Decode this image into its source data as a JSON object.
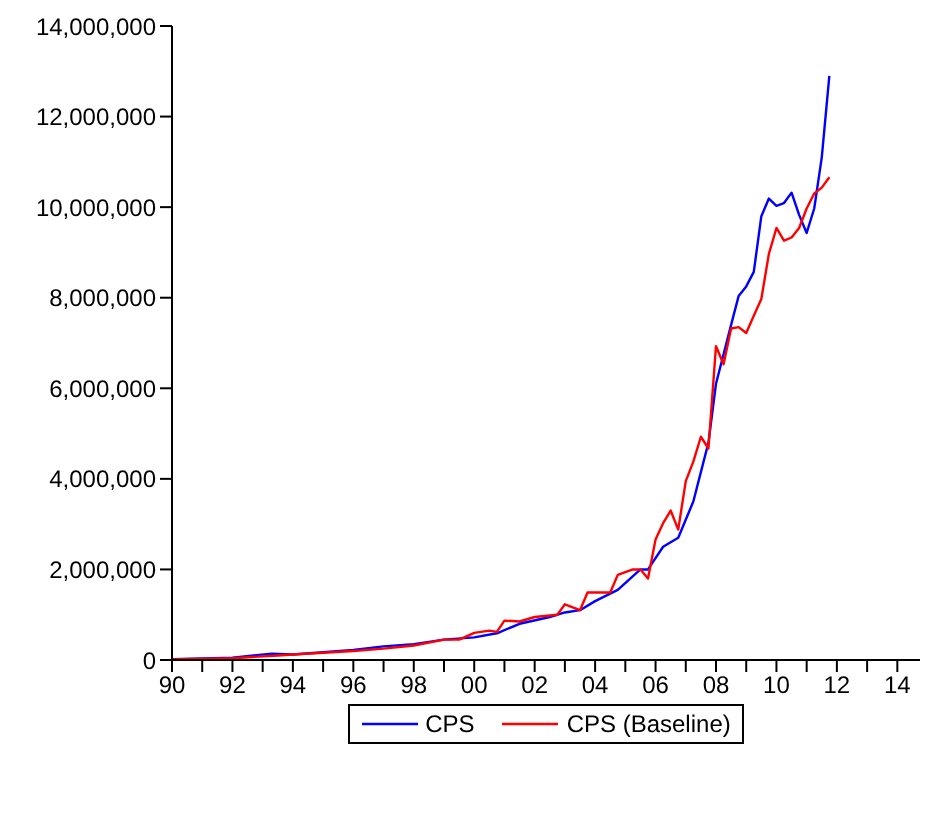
{
  "chart_data": {
    "type": "line",
    "xlim": [
      1990,
      2014.75
    ],
    "ylim": [
      0,
      14000000
    ],
    "xticks": [
      {
        "value": 1990,
        "label": "90"
      },
      {
        "value": 1991,
        "label": null
      },
      {
        "value": 1992,
        "label": "92"
      },
      {
        "value": 1993,
        "label": null
      },
      {
        "value": 1994,
        "label": "94"
      },
      {
        "value": 1995,
        "label": null
      },
      {
        "value": 1996,
        "label": "96"
      },
      {
        "value": 1997,
        "label": null
      },
      {
        "value": 1998,
        "label": "98"
      },
      {
        "value": 1999,
        "label": null
      },
      {
        "value": 2000,
        "label": "00"
      },
      {
        "value": 2001,
        "label": null
      },
      {
        "value": 2002,
        "label": "02"
      },
      {
        "value": 2003,
        "label": null
      },
      {
        "value": 2004,
        "label": "04"
      },
      {
        "value": 2005,
        "label": null
      },
      {
        "value": 2006,
        "label": "06"
      },
      {
        "value": 2007,
        "label": null
      },
      {
        "value": 2008,
        "label": "08"
      },
      {
        "value": 2009,
        "label": null
      },
      {
        "value": 2010,
        "label": "10"
      },
      {
        "value": 2011,
        "label": null
      },
      {
        "value": 2012,
        "label": "12"
      },
      {
        "value": 2013,
        "label": null
      },
      {
        "value": 2014,
        "label": "14"
      }
    ],
    "yticks": [
      0,
      {
        "value": 2000000,
        "label": "2,000,000"
      },
      {
        "value": 4000000,
        "label": "4,000,000"
      },
      {
        "value": 6000000,
        "label": "6,000,000"
      },
      {
        "value": 8000000,
        "label": "8,000,000"
      },
      {
        "value": 10000000,
        "label": "10,000,000"
      },
      {
        "value": 12000000,
        "label": "12,000,000"
      },
      {
        "value": 14000000,
        "label": "14,000,000"
      }
    ],
    "legend": "bottom",
    "line_style": "solid",
    "marker": "none",
    "series": [
      {
        "name": "CPS",
        "color": "#0000ff",
        "x": [
          1990,
          1992,
          1993.3,
          1994,
          1995,
          1996,
          1997,
          1998,
          1999,
          2000,
          2000.75,
          2001.5,
          2002.5,
          2003,
          2003.5,
          2004,
          2004.75,
          2005.5,
          2005.75,
          2006.25,
          2006.75,
          2007.25,
          2007.75,
          2008,
          2008.5,
          2008.75,
          2009,
          2009.25,
          2009.5,
          2009.75,
          2010,
          2010.25,
          2010.5,
          2010.75,
          2011,
          2011.25,
          2011.5,
          2011.75
        ],
        "values": [
          20000,
          50000,
          140000,
          120000,
          170000,
          220000,
          300000,
          350000,
          450000,
          500000,
          590000,
          800000,
          950000,
          1050000,
          1100000,
          1300000,
          1550000,
          2000000,
          2000000,
          2500000,
          2700000,
          3500000,
          4800000,
          6100000,
          7400000,
          8040000,
          8250000,
          8570000,
          9800000,
          10190000,
          10030000,
          10090000,
          10320000,
          9830000,
          9430000,
          9970000,
          11100000,
          12900000
        ]
      },
      {
        "name": "CPS (Baseline)",
        "color": "#ff0000",
        "x": [
          1990,
          1992,
          1993.5,
          1994,
          1996,
          1997,
          1998,
          1999,
          1999.5,
          2000,
          2000.5,
          2000.75,
          2001,
          2001.5,
          2002,
          2002.75,
          2003,
          2003.5,
          2003.75,
          2004.5,
          2004.75,
          2005.25,
          2005.5,
          2005.75,
          2006,
          2006.25,
          2006.5,
          2006.75,
          2007,
          2007.25,
          2007.5,
          2007.75,
          2008,
          2008.25,
          2008.5,
          2008.75,
          2009,
          2009.25,
          2009.5,
          2009.75,
          2010,
          2010.25,
          2010.5,
          2010.75,
          2011,
          2011.25,
          2011.5,
          2011.75
        ],
        "values": [
          10000,
          40000,
          100000,
          120000,
          200000,
          250000,
          320000,
          450000,
          450000,
          600000,
          650000,
          620000,
          870000,
          850000,
          950000,
          1000000,
          1230000,
          1100000,
          1490000,
          1490000,
          1880000,
          2000000,
          2000000,
          1800000,
          2660000,
          3020000,
          3300000,
          2880000,
          3950000,
          4380000,
          4930000,
          4670000,
          6930000,
          6530000,
          7320000,
          7350000,
          7220000,
          7600000,
          7970000,
          8970000,
          9540000,
          9260000,
          9330000,
          9540000,
          9970000,
          10300000,
          10430000,
          10660000
        ]
      }
    ]
  }
}
